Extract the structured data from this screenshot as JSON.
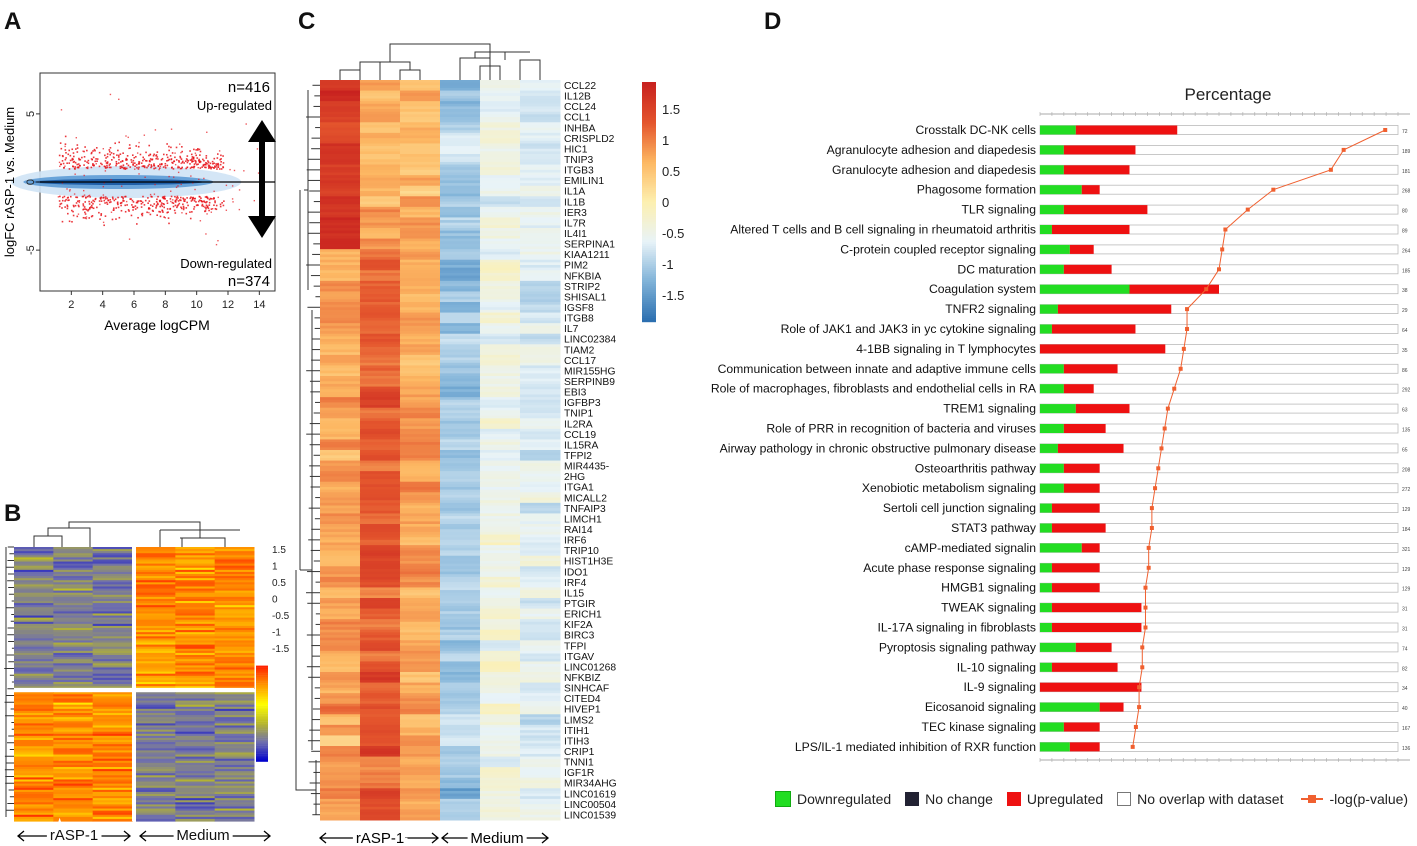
{
  "panel_letters": {
    "a": "A",
    "b": "B",
    "c": "C",
    "d": "D"
  },
  "colors": {
    "down": "#22dd22",
    "up": "#ee1111",
    "nochange": "#222233",
    "line": "#f06030",
    "heat_red": "#d7301f",
    "heat_yellow": "#ffeda0",
    "heat_blue": "#3a76b8"
  },
  "panel_a": {
    "n_up": "n=416",
    "up_label": "Up-regulated",
    "n_down": "n=374",
    "down_label": "Down-regulated",
    "ylabel": "logFC rASP-1 vs. Medium",
    "xlabel": "Average logCPM",
    "xticks": [
      "2",
      "4",
      "6",
      "8",
      "10",
      "12",
      "14"
    ],
    "yticks": [
      "5",
      "0",
      "-5"
    ]
  },
  "panel_b": {
    "group1": "rASP-1",
    "group2": "Medium",
    "scale": [
      "1.5",
      "1",
      "0.5",
      "0",
      "-0.5",
      "-1",
      "-1.5"
    ]
  },
  "panel_c": {
    "group1": "rASP-1",
    "group2": "Medium",
    "scale": [
      "1.5",
      "1",
      "0.5",
      "0",
      "-0.5",
      "-1",
      "-1.5"
    ],
    "genes": [
      "CCL22",
      "IL12B",
      "CCL24",
      "CCL1",
      "INHBA",
      "CRISPLD2",
      "HIC1",
      "TNIP3",
      "ITGB3",
      "EMILIN1",
      "IL1A",
      "IL1B",
      "IER3",
      "IL7R",
      "IL4I1",
      "SERPINA1",
      "KIAA1211",
      "PIM2",
      "NFKBIA",
      "STRIP2",
      "SHISAL1",
      "IGSF8",
      "ITGB8",
      "IL7",
      "LINC02384",
      "TIAM2",
      "CCL17",
      "MIR155HG",
      "SERPINB9",
      "EBI3",
      "IGFBP3",
      "TNIP1",
      "IL2RA",
      "CCL19",
      "IL15RA",
      "TFPI2",
      "MIR4435-",
      "2HG",
      "ITGA1",
      "MICALL2",
      "TNFAIP3",
      "LIMCH1",
      "RAI14",
      "IRF6",
      "TRIP10",
      "HIST1H3E",
      "IDO1",
      "IRF4",
      "IL15",
      "PTGIR",
      "ERICH1",
      "KIF2A",
      "BIRC3",
      "TFPI",
      "ITGAV",
      "LINC01268",
      "NFKBIZ",
      "SINHCAF",
      "CITED4",
      "HIVEP1",
      "LIMS2",
      "ITIH1",
      "ITIH3",
      "CRIP1",
      "TNNI1",
      "IGF1R",
      "MIR34AHG",
      "LINC01619",
      "LINC00504",
      "LINC01539"
    ]
  },
  "panel_d": {
    "title": "Percentage",
    "legend": [
      "Downregulated",
      "No change",
      "Upregulated",
      "No overlap with dataset",
      "-log(p-value)"
    ],
    "pathways": [
      {
        "name": "Crosstalk DC-NK cells",
        "down": 3,
        "up": 8.5,
        "p": 10.8,
        "count": "72"
      },
      {
        "name": "Agranulocyte adhesion and diapedesis",
        "down": 2,
        "up": 6,
        "p": 9.5,
        "count": "189"
      },
      {
        "name": "Granulocyte adhesion and diapedesis",
        "down": 2,
        "up": 5.5,
        "p": 9.1,
        "count": "181"
      },
      {
        "name": "Phagosome formation",
        "down": 3.5,
        "up": 1.5,
        "p": 7.3,
        "count": "268"
      },
      {
        "name": "TLR signaling",
        "down": 2,
        "up": 7,
        "p": 6.5,
        "count": "80"
      },
      {
        "name": "Altered T cells and B cell signaling in rheumatoid arthritis",
        "down": 1,
        "up": 6.5,
        "p": 5.8,
        "count": "89"
      },
      {
        "name": "C-protein coupled receptor signaling",
        "down": 2.5,
        "up": 2,
        "p": 5.7,
        "count": "264"
      },
      {
        "name": "DC maturation",
        "down": 2,
        "up": 4,
        "p": 5.6,
        "count": "185"
      },
      {
        "name": "Coagulation system",
        "down": 7.5,
        "up": 7.5,
        "p": 5.2,
        "count": "38"
      },
      {
        "name": "TNFR2 signaling",
        "down": 1.5,
        "up": 9.5,
        "p": 4.6,
        "count": "29"
      },
      {
        "name": "Role of JAK1 and JAK3 in yc cytokine signaling",
        "down": 1,
        "up": 7,
        "p": 4.6,
        "count": "64"
      },
      {
        "name": "4-1BB signaling in T lymphocytes",
        "down": 0,
        "up": 10.5,
        "p": 4.5,
        "count": "35"
      },
      {
        "name": "Communication between innate and adaptive immune cells",
        "down": 2,
        "up": 4.5,
        "p": 4.4,
        "count": "86"
      },
      {
        "name": "Role of macrophages, fibroblasts and endothelial cells in RA",
        "down": 2,
        "up": 2.5,
        "p": 4.2,
        "count": "292"
      },
      {
        "name": "TREM1 signaling",
        "down": 3,
        "up": 4.5,
        "p": 4.0,
        "count": "63"
      },
      {
        "name": "Role of PRR in recognition of bacteria and viruses",
        "down": 2,
        "up": 3.5,
        "p": 3.9,
        "count": "135"
      },
      {
        "name": "Airway pathology in chronic obstructive pulmonary disease",
        "down": 1.5,
        "up": 5.5,
        "p": 3.8,
        "count": "65"
      },
      {
        "name": "Osteoarthritis pathway",
        "down": 2,
        "up": 3,
        "p": 3.7,
        "count": "208"
      },
      {
        "name": "Xenobiotic metabolism signaling",
        "down": 2,
        "up": 3,
        "p": 3.6,
        "count": "272"
      },
      {
        "name": "Sertoli cell junction signaling",
        "down": 1,
        "up": 4,
        "p": 3.5,
        "count": "129"
      },
      {
        "name": "STAT3 pathway",
        "down": 1,
        "up": 4.5,
        "p": 3.5,
        "count": "184"
      },
      {
        "name": "cAMP-mediated signalin",
        "down": 3.5,
        "up": 1.5,
        "p": 3.4,
        "count": "321"
      },
      {
        "name": "Acute phase response signaling",
        "down": 1,
        "up": 4,
        "p": 3.4,
        "count": "129"
      },
      {
        "name": "HMGB1 signaling",
        "down": 1,
        "up": 4,
        "p": 3.3,
        "count": "129"
      },
      {
        "name": "TWEAK signaling",
        "down": 1,
        "up": 7.5,
        "p": 3.3,
        "count": "31"
      },
      {
        "name": "IL-17A signaling in fibroblasts",
        "down": 1,
        "up": 7.5,
        "p": 3.3,
        "count": "31"
      },
      {
        "name": "Pyroptosis signaling pathway",
        "down": 3,
        "up": 3,
        "p": 3.2,
        "count": "74"
      },
      {
        "name": "IL-10 signaling",
        "down": 1,
        "up": 5.5,
        "p": 3.2,
        "count": "82"
      },
      {
        "name": "IL-9 signaling",
        "down": 0,
        "up": 8.5,
        "p": 3.1,
        "count": "34"
      },
      {
        "name": "Eicosanoid signaling",
        "down": 5,
        "up": 2,
        "p": 3.1,
        "count": "40"
      },
      {
        "name": "TEC kinase signaling",
        "down": 2,
        "up": 3,
        "p": 3.0,
        "count": "167"
      },
      {
        "name": "LPS/IL-1 mediated inhibition of RXR function",
        "down": 2.5,
        "up": 2.5,
        "p": 2.9,
        "count": "136"
      }
    ]
  }
}
